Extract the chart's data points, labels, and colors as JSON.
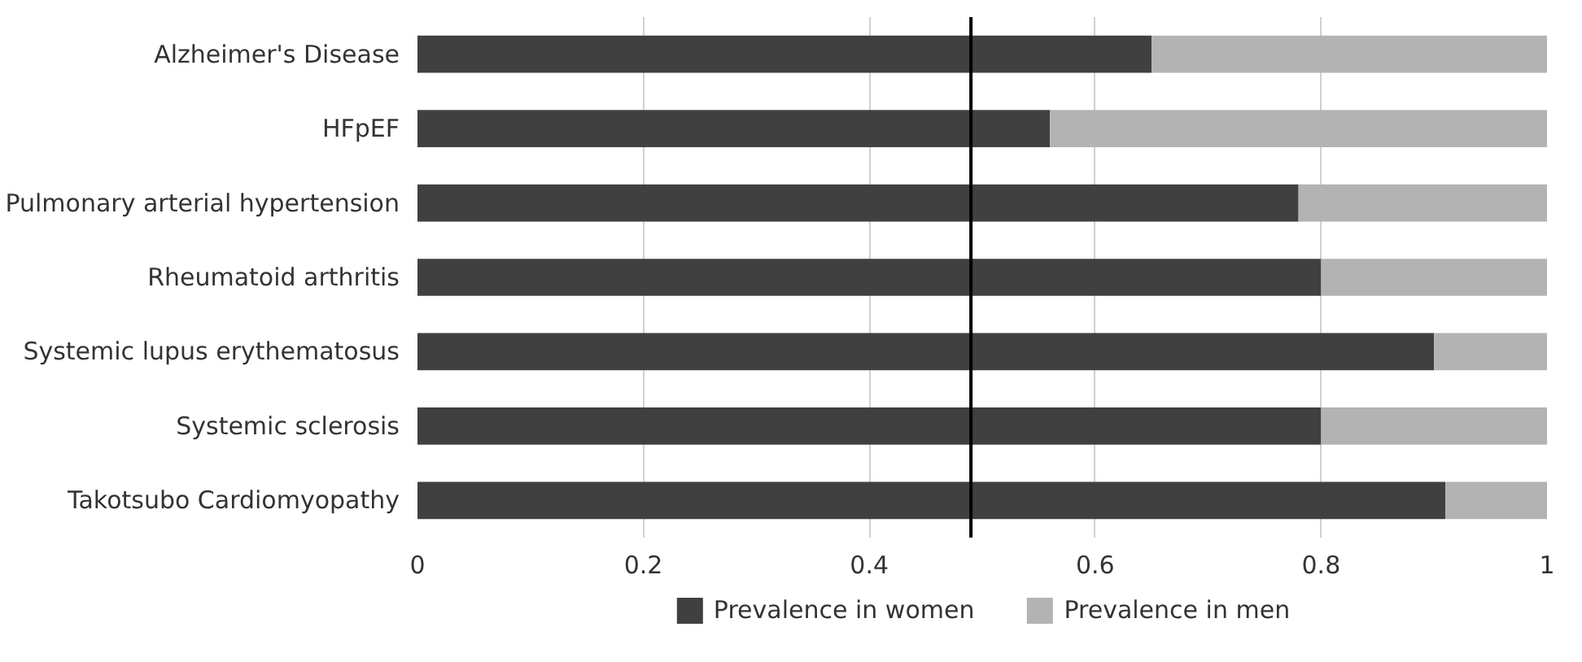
{
  "chart_data": {
    "type": "bar",
    "orientation": "horizontal",
    "stacked": true,
    "categories": [
      "Alzheimer's Disease",
      "HFpEF",
      "Pulmonary arterial hypertension",
      "Rheumatoid arthritis",
      "Systemic lupus erythematosus",
      "Systemic sclerosis",
      "Takotsubo Cardiomyopathy"
    ],
    "series": [
      {
        "name": "Prevalence in women",
        "color": "#404040",
        "values": [
          0.65,
          0.56,
          0.78,
          0.8,
          0.9,
          0.8,
          0.91
        ]
      },
      {
        "name": "Prevalence in men",
        "color": "#b3b3b3",
        "values": [
          0.35,
          0.44,
          0.22,
          0.2,
          0.1,
          0.2,
          0.09
        ]
      }
    ],
    "xlim": [
      0,
      1
    ],
    "xticks": [
      0,
      0.2,
      0.4,
      0.6,
      0.8,
      1
    ],
    "grid": "x",
    "legend": "bottom",
    "ref_lines": [
      {
        "axis": "x",
        "value": 0.49,
        "color": "#000000"
      }
    ]
  }
}
